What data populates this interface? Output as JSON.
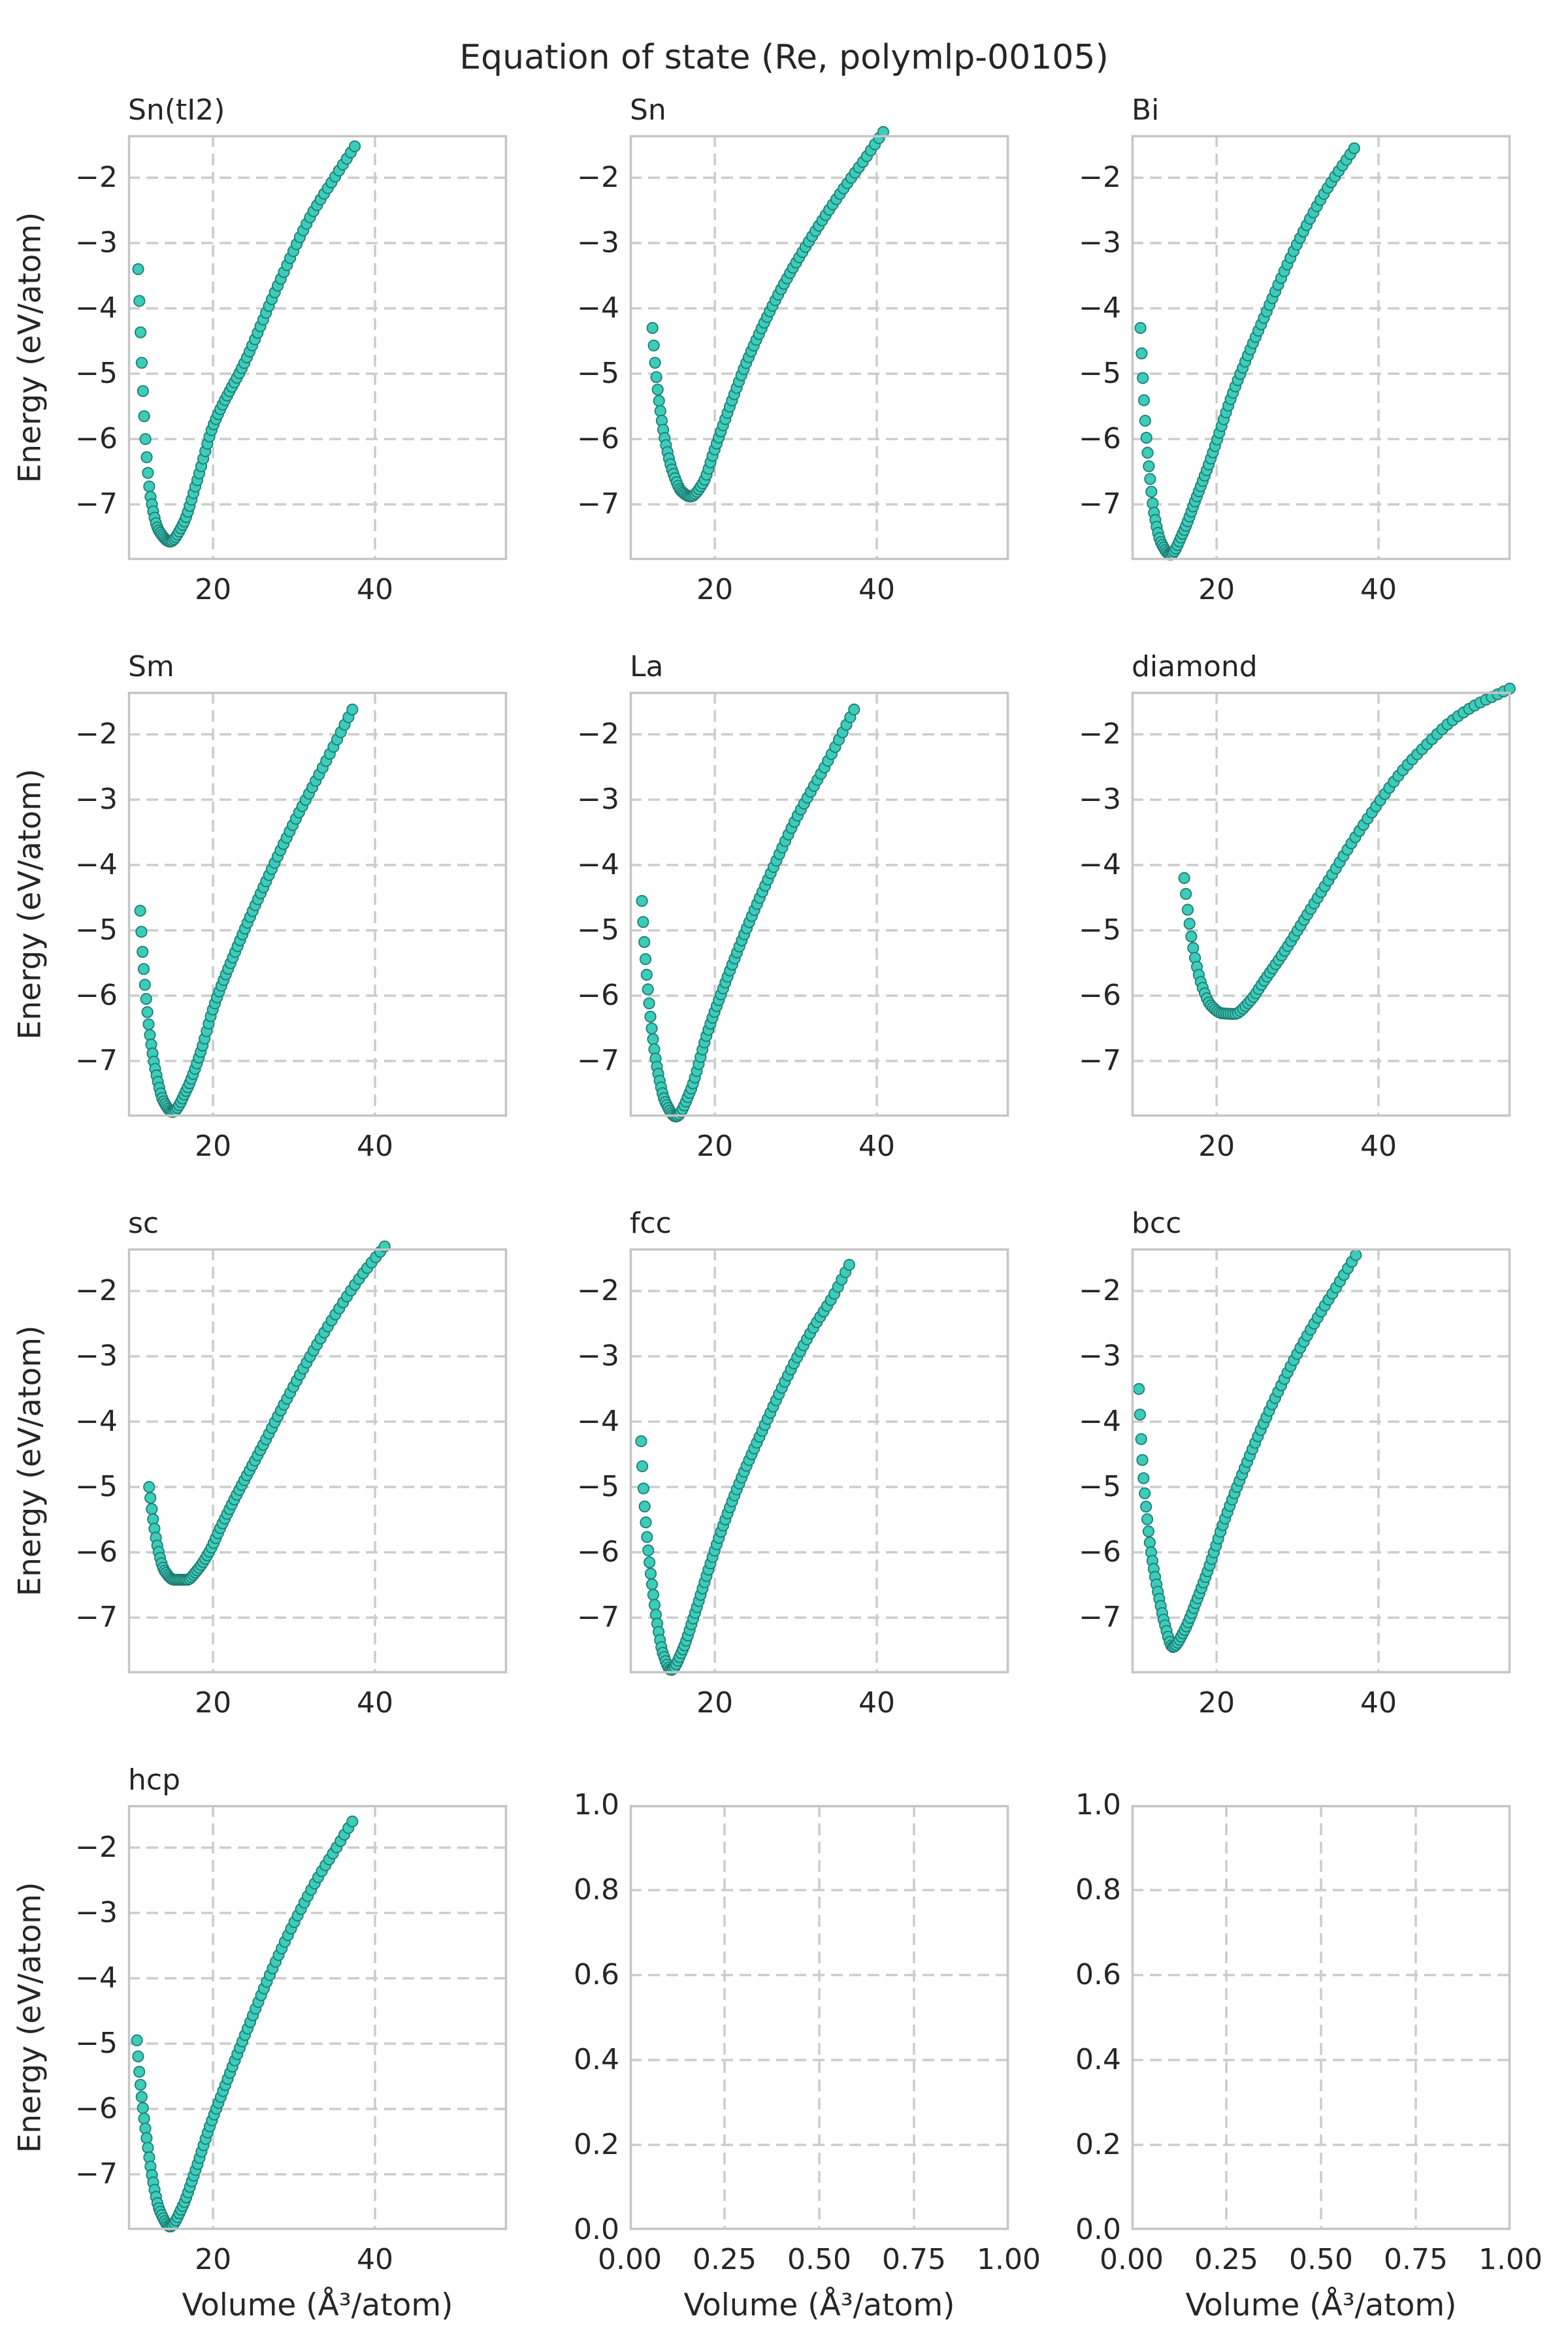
{
  "title": "Equation of state (Re, polymlp-00105)",
  "axis": {
    "xlabel": "Volume (Å³/atom)",
    "ylabel": "Energy (eV/atom)"
  },
  "style": {
    "marker_fill": "#3cccba",
    "marker_edge": "#1e7d73",
    "marker_radius": 8.2,
    "grid_color": "#cccccc",
    "frame_color": "#c5c5c5",
    "text_color": "#262626",
    "background": "#ffffff"
  },
  "chart_data": {
    "type": "scatter",
    "rows": 4,
    "cols": 3,
    "shared": {
      "xlim": [
        9.5,
        56.3
      ],
      "ylim": [
        -7.85,
        -1.35
      ],
      "xticks": [
        "20",
        "40"
      ],
      "xtick_values": [
        20,
        40
      ],
      "yticks": [
        "−2",
        "−3",
        "−4",
        "−5",
        "−6",
        "−7"
      ],
      "ytick_values": [
        -2,
        -3,
        -4,
        -5,
        -6,
        -7
      ],
      "grid": "dashed"
    },
    "empty_axes": {
      "xlim": [
        0,
        1
      ],
      "ylim": [
        0,
        1
      ],
      "xticks": [
        "0.00",
        "0.25",
        "0.50",
        "0.75",
        "1.00"
      ],
      "xtick_values": [
        0,
        0.25,
        0.5,
        0.75,
        1
      ],
      "yticks": [
        "1.0",
        "0.8",
        "0.6",
        "0.4",
        "0.2",
        "0.0"
      ],
      "ytick_values": [
        1,
        0.8,
        0.6,
        0.4,
        0.2,
        0
      ]
    },
    "subplots": [
      {
        "title": "Sn(tI2)",
        "kind": "eos",
        "row": 0,
        "col": 0,
        "show_ylabel": true,
        "show_xlabel": false,
        "v_range": [
          10.75,
          37.5
        ],
        "n_points": 95,
        "v0": 14.7,
        "e_min": -7.57,
        "curve": [
          [
            10.75,
            -3.4
          ],
          [
            11.05,
            -4.4
          ],
          [
            11.35,
            -5.3
          ],
          [
            11.75,
            -6.2
          ],
          [
            12.3,
            -6.9
          ],
          [
            13.3,
            -7.4
          ],
          [
            14.7,
            -7.57
          ],
          [
            16.3,
            -7.3
          ],
          [
            18,
            -6.65
          ],
          [
            20,
            -5.8
          ],
          [
            24,
            -4.8
          ],
          [
            28,
            -3.65
          ],
          [
            32,
            -2.6
          ],
          [
            35,
            -2.0
          ],
          [
            37.5,
            -1.52
          ]
        ]
      },
      {
        "title": "Sn",
        "kind": "eos",
        "row": 0,
        "col": 1,
        "show_ylabel": false,
        "show_xlabel": false,
        "v_range": [
          12.3,
          40.8
        ],
        "n_points": 95,
        "v0": 17.0,
        "e_min": -6.88,
        "curve": [
          [
            12.3,
            -4.3
          ],
          [
            12.7,
            -4.95
          ],
          [
            13.2,
            -5.5
          ],
          [
            13.9,
            -6.05
          ],
          [
            14.8,
            -6.5
          ],
          [
            15.9,
            -6.8
          ],
          [
            17.0,
            -6.88
          ],
          [
            18.5,
            -6.68
          ],
          [
            20,
            -6.15
          ],
          [
            22,
            -5.45
          ],
          [
            24,
            -4.8
          ],
          [
            28,
            -3.75
          ],
          [
            32,
            -2.9
          ],
          [
            36,
            -2.15
          ],
          [
            38.5,
            -1.72
          ],
          [
            40.8,
            -1.3
          ]
        ]
      },
      {
        "title": "Bi",
        "kind": "eos",
        "row": 0,
        "col": 2,
        "show_ylabel": false,
        "show_xlabel": false,
        "v_range": [
          10.6,
          37.0
        ],
        "n_points": 95,
        "v0": 14.3,
        "e_min": -7.77,
        "curve": [
          [
            10.6,
            -4.3
          ],
          [
            10.9,
            -5.1
          ],
          [
            11.25,
            -5.85
          ],
          [
            11.7,
            -6.5
          ],
          [
            12.3,
            -7.15
          ],
          [
            13.2,
            -7.6
          ],
          [
            14.3,
            -7.77
          ],
          [
            15.8,
            -7.45
          ],
          [
            17.5,
            -6.9
          ],
          [
            19,
            -6.4
          ],
          [
            22,
            -5.3
          ],
          [
            26,
            -4.1
          ],
          [
            30,
            -3.0
          ],
          [
            33.5,
            -2.2
          ],
          [
            37,
            -1.55
          ]
        ]
      },
      {
        "title": "Sm",
        "kind": "eos",
        "row": 1,
        "col": 0,
        "show_ylabel": true,
        "show_xlabel": false,
        "v_range": [
          11.0,
          37.2
        ],
        "n_points": 95,
        "v0": 15.0,
        "e_min": -7.78,
        "curve": [
          [
            11.0,
            -4.7
          ],
          [
            11.3,
            -5.35
          ],
          [
            11.7,
            -6.0
          ],
          [
            12.2,
            -6.6
          ],
          [
            12.9,
            -7.15
          ],
          [
            13.9,
            -7.62
          ],
          [
            15.0,
            -7.78
          ],
          [
            16.8,
            -7.42
          ],
          [
            18.5,
            -6.85
          ],
          [
            20,
            -6.2
          ],
          [
            23,
            -5.25
          ],
          [
            26,
            -4.4
          ],
          [
            30,
            -3.35
          ],
          [
            34,
            -2.4
          ],
          [
            37.2,
            -1.62
          ]
        ]
      },
      {
        "title": "La",
        "kind": "eos",
        "row": 1,
        "col": 1,
        "show_ylabel": false,
        "show_xlabel": false,
        "v_range": [
          11.0,
          37.2
        ],
        "n_points": 95,
        "v0": 15.2,
        "e_min": -7.85,
        "curve": [
          [
            11.0,
            -4.55
          ],
          [
            11.3,
            -5.2
          ],
          [
            11.7,
            -5.85
          ],
          [
            12.2,
            -6.5
          ],
          [
            12.9,
            -7.12
          ],
          [
            13.9,
            -7.63
          ],
          [
            15.2,
            -7.85
          ],
          [
            17,
            -7.45
          ],
          [
            19,
            -6.6
          ],
          [
            21,
            -5.9
          ],
          [
            24,
            -4.95
          ],
          [
            27,
            -4.1
          ],
          [
            30,
            -3.3
          ],
          [
            34,
            -2.4
          ],
          [
            37.2,
            -1.62
          ]
        ]
      },
      {
        "title": "diamond",
        "kind": "eos",
        "row": 1,
        "col": 2,
        "show_ylabel": false,
        "show_xlabel": false,
        "v_range": [
          16.0,
          56.2
        ],
        "n_points": 95,
        "v0": 22.2,
        "e_min": -6.28,
        "curve": [
          [
            16.0,
            -4.2
          ],
          [
            16.6,
            -4.85
          ],
          [
            17.3,
            -5.4
          ],
          [
            18.2,
            -5.85
          ],
          [
            19.3,
            -6.15
          ],
          [
            20.7,
            -6.27
          ],
          [
            22.2,
            -6.28
          ],
          [
            24,
            -6.1
          ],
          [
            26,
            -5.75
          ],
          [
            28.5,
            -5.3
          ],
          [
            31,
            -4.8
          ],
          [
            34,
            -4.2
          ],
          [
            37,
            -3.6
          ],
          [
            40,
            -3.05
          ],
          [
            43,
            -2.55
          ],
          [
            46,
            -2.15
          ],
          [
            49,
            -1.8
          ],
          [
            52,
            -1.55
          ],
          [
            54.5,
            -1.4
          ],
          [
            56.2,
            -1.3
          ]
        ]
      },
      {
        "title": "sc",
        "kind": "eos",
        "row": 2,
        "col": 0,
        "show_ylabel": true,
        "show_xlabel": false,
        "v_range": [
          12.1,
          42.3
        ],
        "n_points": 95,
        "v0": 16.0,
        "e_min": -6.42,
        "curve": [
          [
            12.1,
            -5.0
          ],
          [
            12.6,
            -5.5
          ],
          [
            13.2,
            -5.95
          ],
          [
            14.0,
            -6.28
          ],
          [
            15.2,
            -6.42
          ],
          [
            16.8,
            -6.42
          ],
          [
            18,
            -6.28
          ],
          [
            19.5,
            -6.0
          ],
          [
            21,
            -5.6
          ],
          [
            23,
            -5.1
          ],
          [
            26,
            -4.4
          ],
          [
            29,
            -3.68
          ],
          [
            32,
            -3.0
          ],
          [
            35,
            -2.38
          ],
          [
            38,
            -1.82
          ],
          [
            40,
            -1.5
          ],
          [
            42.3,
            -1.15
          ]
        ]
      },
      {
        "title": "fcc",
        "kind": "eos",
        "row": 2,
        "col": 1,
        "show_ylabel": false,
        "show_xlabel": false,
        "v_range": [
          10.9,
          36.6
        ],
        "n_points": 95,
        "v0": 14.6,
        "e_min": -7.8,
        "curve": [
          [
            10.9,
            -4.3
          ],
          [
            11.15,
            -4.95
          ],
          [
            11.45,
            -5.5
          ],
          [
            11.8,
            -6.0
          ],
          [
            12.3,
            -6.55
          ],
          [
            12.9,
            -7.1
          ],
          [
            13.6,
            -7.55
          ],
          [
            14.6,
            -7.8
          ],
          [
            16,
            -7.5
          ],
          [
            17.5,
            -6.95
          ],
          [
            19,
            -6.35
          ],
          [
            21,
            -5.6
          ],
          [
            23.5,
            -4.8
          ],
          [
            26,
            -4.1
          ],
          [
            29,
            -3.3
          ],
          [
            32,
            -2.6
          ],
          [
            34.5,
            -2.1
          ],
          [
            36.6,
            -1.6
          ]
        ]
      },
      {
        "title": "bcc",
        "kind": "eos",
        "row": 2,
        "col": 2,
        "show_ylabel": false,
        "show_xlabel": false,
        "v_range": [
          10.4,
          37.2
        ],
        "n_points": 95,
        "v0": 14.6,
        "e_min": -7.45,
        "curve": [
          [
            10.4,
            -3.5
          ],
          [
            10.7,
            -4.3
          ],
          [
            11.0,
            -4.9
          ],
          [
            11.4,
            -5.45
          ],
          [
            11.8,
            -5.9
          ],
          [
            12.3,
            -6.3
          ],
          [
            12.9,
            -6.7
          ],
          [
            13.6,
            -7.1
          ],
          [
            14.6,
            -7.45
          ],
          [
            16,
            -7.2
          ],
          [
            17.5,
            -6.75
          ],
          [
            19,
            -6.25
          ],
          [
            21,
            -5.5
          ],
          [
            24,
            -4.55
          ],
          [
            27,
            -3.7
          ],
          [
            30,
            -2.95
          ],
          [
            33,
            -2.3
          ],
          [
            35,
            -1.9
          ],
          [
            37.2,
            -1.45
          ]
        ]
      },
      {
        "title": "hcp",
        "kind": "eos",
        "row": 3,
        "col": 0,
        "show_ylabel": true,
        "show_xlabel": true,
        "v_range": [
          10.6,
          37.2
        ],
        "n_points": 95,
        "v0": 14.7,
        "e_min": -7.8,
        "curve": [
          [
            10.6,
            -4.95
          ],
          [
            10.9,
            -5.45
          ],
          [
            11.3,
            -5.95
          ],
          [
            11.8,
            -6.45
          ],
          [
            12.5,
            -7.05
          ],
          [
            13.4,
            -7.55
          ],
          [
            14.7,
            -7.8
          ],
          [
            16.2,
            -7.5
          ],
          [
            17.8,
            -6.95
          ],
          [
            19.5,
            -6.3
          ],
          [
            21,
            -5.8
          ],
          [
            24,
            -4.85
          ],
          [
            27,
            -3.95
          ],
          [
            30,
            -3.15
          ],
          [
            33,
            -2.45
          ],
          [
            35,
            -2.05
          ],
          [
            37.2,
            -1.6
          ]
        ]
      },
      {
        "title": "",
        "kind": "empty",
        "row": 3,
        "col": 1,
        "show_ylabel": false,
        "show_xlabel": true
      },
      {
        "title": "",
        "kind": "empty",
        "row": 3,
        "col": 2,
        "show_ylabel": false,
        "show_xlabel": true
      }
    ]
  }
}
